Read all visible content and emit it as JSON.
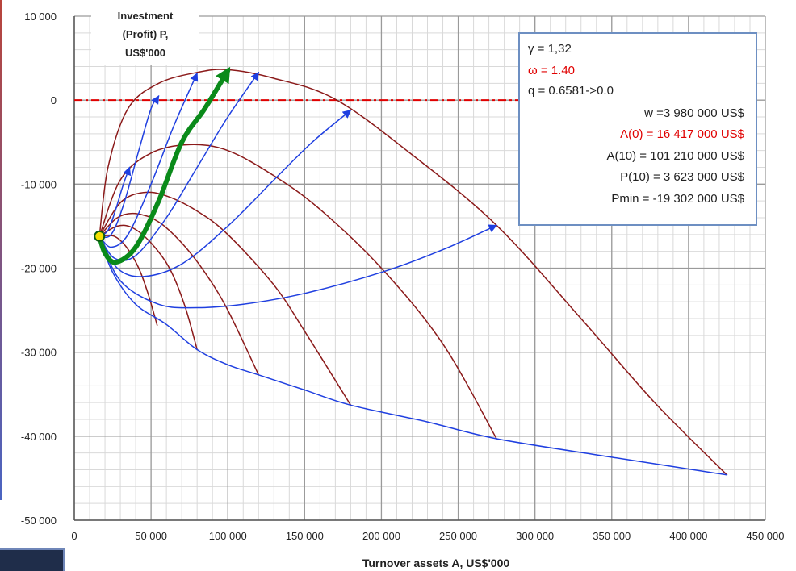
{
  "chart_data": {
    "type": "line",
    "title": "",
    "xlabel": "Turnover assets A, US$'000",
    "ylabel_lines": [
      "Investment",
      "(Profit) P,",
      "US$'000"
    ],
    "xlim": [
      0,
      450000
    ],
    "ylim": [
      -50000,
      10000
    ],
    "x_ticks": [
      0,
      50000,
      100000,
      150000,
      200000,
      250000,
      300000,
      350000,
      400000,
      450000
    ],
    "x_tick_labels": [
      "0",
      "50 000",
      "100 000",
      "150 000",
      "200 000",
      "250 000",
      "300 000",
      "350 000",
      "400 000",
      "450 000"
    ],
    "y_ticks": [
      10000,
      0,
      -10000,
      -20000,
      -30000,
      -40000,
      -50000
    ],
    "y_tick_labels": [
      "10 000",
      "0",
      "-10 000",
      "-20 000",
      "-30 000",
      "-40 000",
      "-50 000"
    ],
    "grid": true,
    "zero_line": {
      "y": 0,
      "x_range": [
        0,
        290000
      ],
      "color": "#e00000",
      "style": "dash-dot"
    },
    "start_point": {
      "x": 16417,
      "y": -16200
    },
    "series": [
      {
        "color": "#8b1a1a",
        "width": 1.5,
        "arrow": false,
        "points": [
          [
            16417,
            -16200
          ],
          [
            22000,
            -8000
          ],
          [
            35000,
            -1000
          ],
          [
            55000,
            2000
          ],
          [
            80000,
            3300
          ],
          [
            100000,
            3623
          ],
          [
            130000,
            2600
          ],
          [
            170000,
            100
          ],
          [
            220000,
            -6500
          ],
          [
            275000,
            -14900
          ],
          [
            330000,
            -26000
          ],
          [
            378000,
            -36000
          ],
          [
            425000,
            -44600
          ]
        ]
      },
      {
        "color": "#8b1a1a",
        "width": 1.5,
        "arrow": false,
        "points": [
          [
            16417,
            -16200
          ],
          [
            30000,
            -9500
          ],
          [
            50000,
            -6300
          ],
          [
            75000,
            -5300
          ],
          [
            100000,
            -6000
          ],
          [
            130000,
            -9000
          ],
          [
            160000,
            -13000
          ],
          [
            200000,
            -20000
          ],
          [
            240000,
            -29000
          ],
          [
            275000,
            -40300
          ]
        ]
      },
      {
        "color": "#8b1a1a",
        "width": 1.5,
        "arrow": false,
        "points": [
          [
            16417,
            -16200
          ],
          [
            30000,
            -12200
          ],
          [
            45000,
            -11000
          ],
          [
            60000,
            -11400
          ],
          [
            80000,
            -13200
          ],
          [
            100000,
            -16000
          ],
          [
            130000,
            -22000
          ],
          [
            150000,
            -27500
          ],
          [
            180000,
            -36300
          ]
        ]
      },
      {
        "color": "#8b1a1a",
        "width": 1.5,
        "arrow": false,
        "points": [
          [
            16417,
            -16200
          ],
          [
            28000,
            -14000
          ],
          [
            40000,
            -13500
          ],
          [
            55000,
            -14500
          ],
          [
            70000,
            -17000
          ],
          [
            85000,
            -20500
          ],
          [
            100000,
            -25000
          ],
          [
            120000,
            -32700
          ]
        ]
      },
      {
        "color": "#8b1a1a",
        "width": 1.5,
        "arrow": false,
        "points": [
          [
            16417,
            -16200
          ],
          [
            28000,
            -15000
          ],
          [
            38000,
            -15200
          ],
          [
            50000,
            -17000
          ],
          [
            62000,
            -20000
          ],
          [
            72000,
            -24500
          ],
          [
            80000,
            -29700
          ]
        ]
      },
      {
        "color": "#8b1a1a",
        "width": 1.5,
        "arrow": false,
        "points": [
          [
            16417,
            -16200
          ],
          [
            26000,
            -16200
          ],
          [
            34000,
            -17500
          ],
          [
            42000,
            -20000
          ],
          [
            48000,
            -23000
          ],
          [
            54000,
            -26800
          ]
        ]
      },
      {
        "color": "#1f3fe0",
        "width": 1.5,
        "arrow": false,
        "points": [
          [
            16417,
            -16200
          ],
          [
            25000,
            -20500
          ],
          [
            40000,
            -24300
          ],
          [
            60000,
            -26700
          ],
          [
            80000,
            -29700
          ],
          [
            100000,
            -31500
          ],
          [
            120000,
            -32700
          ],
          [
            150000,
            -34500
          ],
          [
            180000,
            -36300
          ],
          [
            230000,
            -38300
          ],
          [
            275000,
            -40300
          ],
          [
            350000,
            -42500
          ],
          [
            425000,
            -44600
          ]
        ]
      },
      {
        "color": "#1f3fe0",
        "width": 1.5,
        "arrow": true,
        "points": [
          [
            16417,
            -16200
          ],
          [
            30000,
            -21500
          ],
          [
            55000,
            -24300
          ],
          [
            80000,
            -24700
          ],
          [
            110000,
            -24300
          ],
          [
            150000,
            -23000
          ],
          [
            200000,
            -20500
          ],
          [
            240000,
            -17800
          ],
          [
            275000,
            -14900
          ]
        ]
      },
      {
        "color": "#1f3fe0",
        "width": 1.5,
        "arrow": true,
        "points": [
          [
            16417,
            -16200
          ],
          [
            28000,
            -20000
          ],
          [
            45000,
            -21000
          ],
          [
            70000,
            -19500
          ],
          [
            100000,
            -15000
          ],
          [
            130000,
            -9500
          ],
          [
            155000,
            -5000
          ],
          [
            180000,
            -1200
          ]
        ]
      },
      {
        "color": "#1f3fe0",
        "width": 1.5,
        "arrow": true,
        "points": [
          [
            16417,
            -16200
          ],
          [
            26000,
            -18800
          ],
          [
            40000,
            -18500
          ],
          [
            60000,
            -14000
          ],
          [
            80000,
            -8000
          ],
          [
            100000,
            -2000
          ],
          [
            120000,
            3300
          ]
        ]
      },
      {
        "color": "#1f3fe0",
        "width": 1.5,
        "arrow": true,
        "points": [
          [
            16417,
            -16200
          ],
          [
            24000,
            -17500
          ],
          [
            35000,
            -16000
          ],
          [
            50000,
            -10000
          ],
          [
            65000,
            -3000
          ],
          [
            80000,
            3200
          ]
        ]
      },
      {
        "color": "#1f3fe0",
        "width": 1.5,
        "arrow": true,
        "points": [
          [
            16417,
            -16200
          ],
          [
            24000,
            -16000
          ],
          [
            32000,
            -12500
          ],
          [
            42000,
            -6000
          ],
          [
            50000,
            -1000
          ],
          [
            55000,
            500
          ]
        ]
      },
      {
        "color": "#1f3fe0",
        "width": 1.5,
        "arrow": true,
        "points": [
          [
            16417,
            -16200
          ],
          [
            22000,
            -15500
          ],
          [
            27000,
            -13000
          ],
          [
            32000,
            -10000
          ],
          [
            36000,
            -8000
          ]
        ]
      },
      {
        "color": "#0a8a1a",
        "width": 6,
        "arrow": true,
        "points": [
          [
            16417,
            -16200
          ],
          [
            20000,
            -18200
          ],
          [
            27000,
            -19300
          ],
          [
            40000,
            -17500
          ],
          [
            55000,
            -12000
          ],
          [
            70000,
            -5000
          ],
          [
            85000,
            -1000
          ],
          [
            100000,
            3500
          ]
        ]
      }
    ]
  },
  "infobox": {
    "gamma": "γ = 1,32",
    "omega": "ω = 1.40",
    "q": "q = 0.6581->0.0",
    "w": "w =3 980 000 US$",
    "A0": "A(0) = 16 417 000 US$",
    "A10": "A(10) =  101 210 000 US$",
    "P10": "P(10) = 3 623 000 US$",
    "Pmin": "Pmin = -19 302 000 US$"
  },
  "colors": {
    "accent_red": "#e00000",
    "brown": "#8b1a1a",
    "blue": "#1f3fe0",
    "green": "#0a8a1a"
  }
}
